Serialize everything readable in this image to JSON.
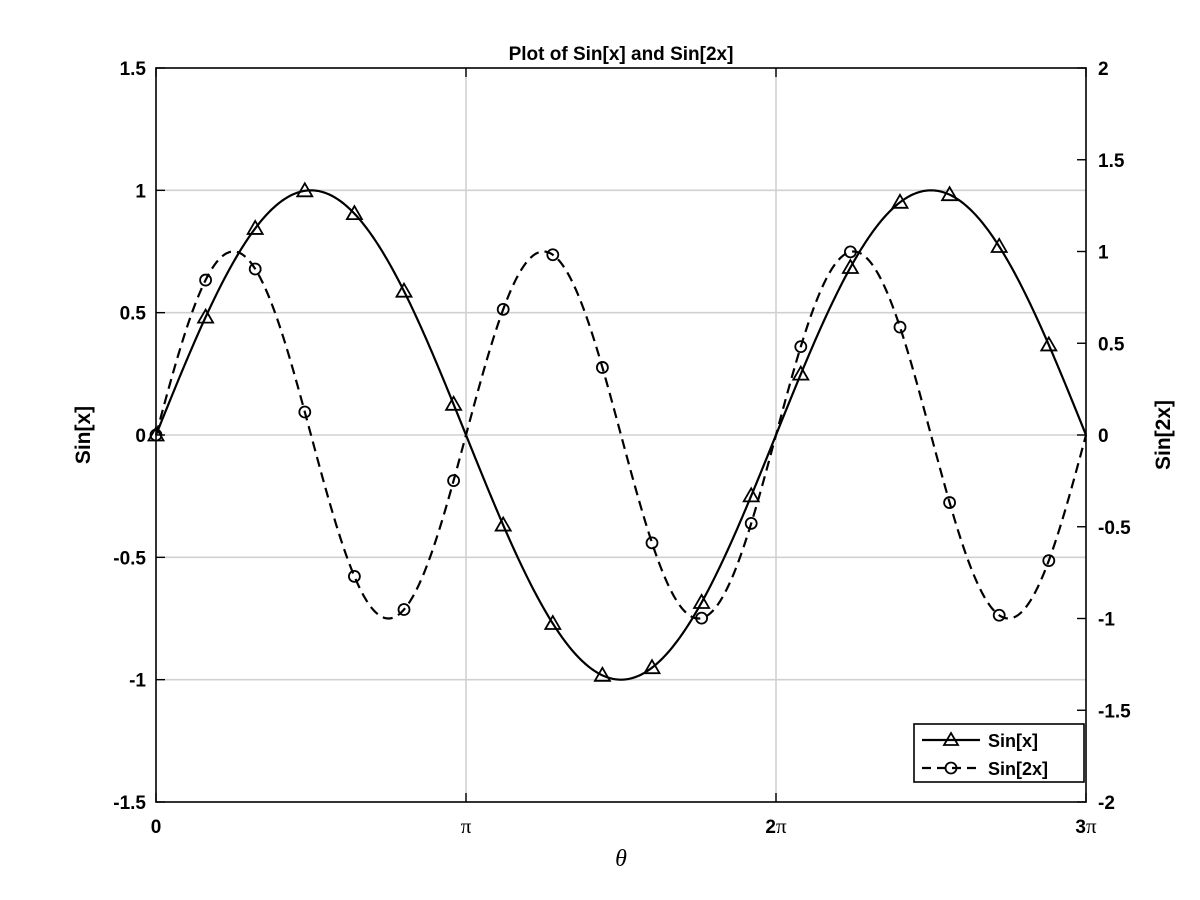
{
  "chart_data": {
    "type": "line",
    "title": "Plot of Sin[x] and Sin[2x]",
    "xlabel": "θ",
    "ylabel_left": "Sin[x]",
    "ylabel_right": "Sin[2x]",
    "xlim_pi": [
      0,
      3
    ],
    "ylim_left": [
      -1.5,
      1.5
    ],
    "ylim_right": [
      -2,
      2
    ],
    "x_ticks": [
      {
        "value_pi": 0,
        "num": "0",
        "sym": ""
      },
      {
        "value_pi": 1,
        "num": "",
        "sym": "π"
      },
      {
        "value_pi": 2,
        "num": "2",
        "sym": "π"
      },
      {
        "value_pi": 3,
        "num": "3",
        "sym": "π"
      }
    ],
    "y_ticks_left": [
      {
        "value": -1.5,
        "label": "-1.5"
      },
      {
        "value": -1,
        "label": "-1"
      },
      {
        "value": -0.5,
        "label": "-0.5"
      },
      {
        "value": 0,
        "label": "0"
      },
      {
        "value": 0.5,
        "label": "0.5"
      },
      {
        "value": 1,
        "label": "1"
      },
      {
        "value": 1.5,
        "label": "1.5"
      }
    ],
    "y_ticks_right": [
      {
        "value": -2,
        "label": "-2"
      },
      {
        "value": -1.5,
        "label": "-1.5"
      },
      {
        "value": -1,
        "label": "-1"
      },
      {
        "value": -0.5,
        "label": "-0.5"
      },
      {
        "value": 0,
        "label": "0"
      },
      {
        "value": 0.5,
        "label": "0.5"
      },
      {
        "value": 1,
        "label": "1"
      },
      {
        "value": 1.5,
        "label": "1.5"
      },
      {
        "value": 2,
        "label": "2"
      }
    ],
    "grid": true,
    "legend_placement": "bottom-right",
    "series": [
      {
        "name": "Sin[x]",
        "function": "sin(x)",
        "axis": "left",
        "line_style": "solid",
        "marker": "triangle",
        "color": "#000000",
        "markers_x_pi": [
          0,
          0.16,
          0.32,
          0.48,
          0.64,
          0.8,
          0.96,
          1.12,
          1.28,
          1.44,
          1.6,
          1.76,
          1.92,
          2.08,
          2.24,
          2.4,
          2.56,
          2.72,
          2.88
        ]
      },
      {
        "name": "Sin[2x]",
        "function": "sin(2x)",
        "axis": "right",
        "line_style": "dashed",
        "marker": "circle",
        "color": "#000000",
        "markers_x_pi": [
          0,
          0.16,
          0.32,
          0.48,
          0.64,
          0.8,
          0.96,
          1.12,
          1.28,
          1.44,
          1.6,
          1.76,
          1.92,
          2.08,
          2.24,
          2.4,
          2.56,
          2.72,
          2.88
        ]
      }
    ]
  }
}
